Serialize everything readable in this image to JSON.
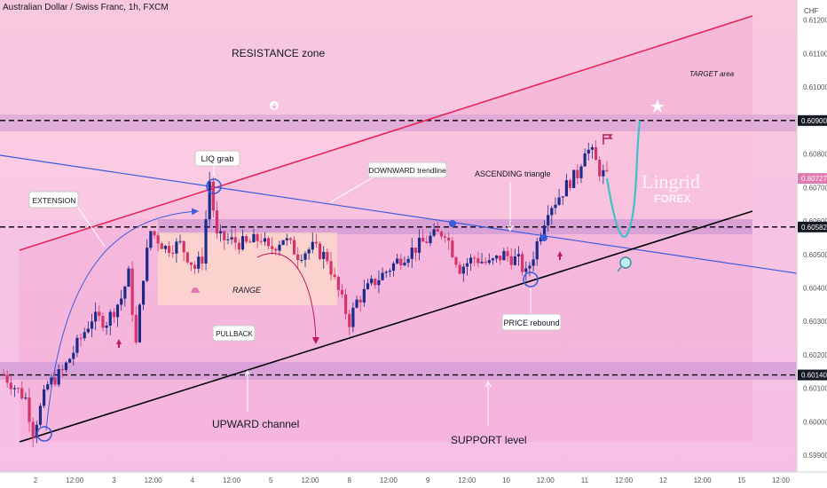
{
  "header": {
    "title": "Australian Dollar / Swiss Franc, 1h, FXCM",
    "currency": "CHF"
  },
  "colors": {
    "up_candle": "#1c2a8a",
    "down_candle": "#d6336c",
    "resistance_line": "#e8245a",
    "downward_trendline": "#3b5bdb",
    "upward_channel_line": "#000000",
    "zone_fill": "#d9a6d6",
    "background_top": "#f6c6dd",
    "background_bottom": "#f6bde8",
    "projection": "#3fc1c9"
  },
  "annotations": {
    "resistance_zone": "RESISTANCE zone",
    "target_area": "TARGET area",
    "liq_grab": "LIQ grab",
    "downward_trendline": "DOWNWARD trendline",
    "ascending_triangle": "ASCENDING triangle",
    "extension": "EXTENSION",
    "range": "RANGE",
    "pullback": "PULLBACK",
    "price_rebound": "PRICE rebound",
    "upward_channel": "UPWARD channel",
    "support_level": "SUPPORT level",
    "watermark_brand": "Lingrid",
    "watermark_sub": "FOREX"
  },
  "chart_data": {
    "type": "candlestick",
    "title": "Australian Dollar / Swiss Franc, 1h, FXCM",
    "currency": "CHF",
    "ylim": [
      0.5985,
      0.6126
    ],
    "y_ticks": [
      0.612,
      0.611,
      0.61,
      0.608,
      0.607,
      0.606,
      0.605,
      0.604,
      0.603,
      0.602,
      0.601,
      0.6,
      0.599
    ],
    "x_tick_labels": [
      "2",
      "12:00",
      "3",
      "12:00",
      "4",
      "12:00",
      "5",
      "12:00",
      "8",
      "12:00",
      "9",
      "12:00",
      "10",
      "12:00",
      "11",
      "12:00",
      "12",
      "12:00",
      "15",
      "12:00"
    ],
    "price_levels": [
      {
        "value": 0.609,
        "label": "0.60900"
      },
      {
        "value": 0.60582,
        "label": "0.60582"
      },
      {
        "value": 0.6014,
        "label": "0.60140"
      }
    ],
    "last_price": {
      "value": 0.60727,
      "label": "0.60727"
    },
    "close_path": [
      [
        0,
        0.6014
      ],
      [
        3,
        0.6007
      ],
      [
        4,
        0.5997
      ],
      [
        5,
        0.6004
      ],
      [
        6,
        0.6011
      ],
      [
        8,
        0.6015
      ],
      [
        10,
        0.6023
      ],
      [
        12,
        0.6031
      ],
      [
        14,
        0.603
      ],
      [
        16,
        0.6037
      ],
      [
        17,
        0.6044
      ],
      [
        18,
        0.6023
      ],
      [
        19,
        0.6044
      ],
      [
        20,
        0.6057
      ],
      [
        22,
        0.6052
      ],
      [
        24,
        0.6053
      ],
      [
        26,
        0.6046
      ],
      [
        27,
        0.6049
      ],
      [
        28,
        0.6072
      ],
      [
        29,
        0.6055
      ],
      [
        31,
        0.6054
      ],
      [
        33,
        0.6053
      ],
      [
        35,
        0.6055
      ],
      [
        36,
        0.6051
      ],
      [
        38,
        0.6055
      ],
      [
        40,
        0.605
      ],
      [
        42,
        0.6052
      ],
      [
        44,
        0.6049
      ],
      [
        45,
        0.6042
      ],
      [
        46,
        0.6036
      ],
      [
        47,
        0.603
      ],
      [
        48,
        0.6036
      ],
      [
        50,
        0.6041
      ],
      [
        52,
        0.6045
      ],
      [
        54,
        0.6049
      ],
      [
        56,
        0.6052
      ],
      [
        58,
        0.6055
      ],
      [
        60,
        0.6057
      ],
      [
        61,
        0.6051
      ],
      [
        62,
        0.6046
      ],
      [
        64,
        0.6049
      ],
      [
        66,
        0.6047
      ],
      [
        68,
        0.605
      ],
      [
        70,
        0.6048
      ],
      [
        71,
        0.6044
      ],
      [
        72,
        0.605
      ],
      [
        73,
        0.6057
      ],
      [
        74,
        0.6064
      ],
      [
        75,
        0.6066
      ],
      [
        76,
        0.6069
      ],
      [
        77,
        0.6072
      ],
      [
        78,
        0.6074
      ],
      [
        79,
        0.6082
      ],
      [
        80,
        0.608
      ],
      [
        81,
        0.6075
      ],
      [
        82,
        0.6073
      ]
    ],
    "projection_path": [
      {
        "t": 82,
        "price": 0.60727
      },
      {
        "t": 83.5,
        "price": 0.6061
      },
      {
        "t": 86.5,
        "price": 0.609
      }
    ]
  }
}
